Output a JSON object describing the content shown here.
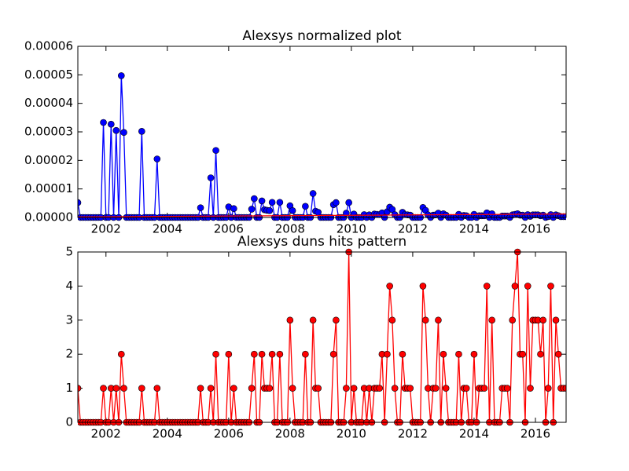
{
  "chart_data": [
    {
      "type": "line",
      "title": "Alexsys normalized plot",
      "x": [
        2001.083,
        2001.167,
        2001.25,
        2001.333,
        2001.417,
        2001.5,
        2001.583,
        2001.667,
        2001.75,
        2001.833,
        2001.917,
        2002,
        2002.083,
        2002.167,
        2002.25,
        2002.333,
        2002.417,
        2002.5,
        2002.583,
        2002.667,
        2002.75,
        2002.833,
        2002.917,
        2003,
        2003.083,
        2003.167,
        2003.25,
        2003.333,
        2003.417,
        2003.5,
        2003.583,
        2003.667,
        2003.75,
        2003.833,
        2003.917,
        2004,
        2004.083,
        2004.167,
        2004.25,
        2004.333,
        2004.417,
        2004.5,
        2004.583,
        2004.667,
        2004.75,
        2004.833,
        2004.917,
        2005,
        2005.083,
        2005.167,
        2005.25,
        2005.333,
        2005.417,
        2005.5,
        2005.583,
        2005.667,
        2005.75,
        2005.833,
        2005.917,
        2006,
        2006.083,
        2006.167,
        2006.25,
        2006.333,
        2006.417,
        2006.5,
        2006.583,
        2006.667,
        2006.75,
        2006.833,
        2006.917,
        2007,
        2007.083,
        2007.167,
        2007.25,
        2007.333,
        2007.417,
        2007.5,
        2007.583,
        2007.667,
        2007.75,
        2007.833,
        2007.917,
        2008,
        2008.083,
        2008.167,
        2008.25,
        2008.333,
        2008.417,
        2008.5,
        2008.583,
        2008.667,
        2008.75,
        2008.833,
        2008.917,
        2009,
        2009.083,
        2009.167,
        2009.25,
        2009.333,
        2009.417,
        2009.5,
        2009.583,
        2009.667,
        2009.75,
        2009.833,
        2009.917,
        2010,
        2010.083,
        2010.167,
        2010.25,
        2010.333,
        2010.417,
        2010.5,
        2010.583,
        2010.667,
        2010.75,
        2010.833,
        2010.917,
        2011,
        2011.083,
        2011.167,
        2011.25,
        2011.333,
        2011.417,
        2011.5,
        2011.583,
        2011.667,
        2011.75,
        2011.833,
        2011.917,
        2012,
        2012.083,
        2012.167,
        2012.25,
        2012.333,
        2012.417,
        2012.5,
        2012.583,
        2012.667,
        2012.75,
        2012.833,
        2012.917,
        2013,
        2013.083,
        2013.167,
        2013.25,
        2013.333,
        2013.417,
        2013.5,
        2013.583,
        2013.667,
        2013.75,
        2013.833,
        2013.917,
        2014,
        2014.083,
        2014.167,
        2014.25,
        2014.333,
        2014.417,
        2014.5,
        2014.583,
        2014.667,
        2014.75,
        2014.833,
        2014.917,
        2015,
        2015.083,
        2015.167,
        2015.25,
        2015.333,
        2015.417,
        2015.5,
        2015.583,
        2015.667,
        2015.75,
        2015.833,
        2015.917,
        2016,
        2016.083,
        2016.167,
        2016.25,
        2016.333,
        2016.417,
        2016.5,
        2016.583,
        2016.667,
        2016.75,
        2016.833,
        2016.917,
        2017
      ],
      "series": [
        {
          "color": "#0000ff",
          "marker": true,
          "values": [
            5.2e-06,
            0,
            0,
            0,
            0,
            0,
            0,
            0,
            0,
            0,
            3.33e-05,
            0,
            0,
            3.27e-05,
            0,
            3.05e-05,
            0,
            4.97e-05,
            2.98e-05,
            0,
            0,
            0,
            0,
            0,
            0,
            3.02e-05,
            0,
            0,
            0,
            0,
            0,
            2.05e-05,
            0,
            0,
            0,
            0,
            0,
            0,
            0,
            0,
            0,
            0,
            0,
            0,
            0,
            0,
            0,
            0,
            3.4e-06,
            0,
            0,
            0,
            1.39e-05,
            0,
            2.35e-05,
            0,
            0,
            0,
            0,
            3.7e-06,
            0,
            3.1e-06,
            0,
            0,
            0,
            0,
            0,
            0,
            2.9e-06,
            6.6e-06,
            0,
            0,
            5.8e-06,
            2.7e-06,
            2.5e-06,
            2.4e-06,
            5.3e-06,
            0,
            0,
            5.3e-06,
            0,
            0,
            0,
            4.1e-06,
            2.4e-06,
            0,
            0,
            0,
            0,
            3.9e-06,
            0,
            0,
            8.4e-06,
            2.2e-06,
            1.8e-06,
            0,
            0,
            0,
            0,
            0,
            4.5e-06,
            5.2e-06,
            0,
            0,
            0,
            1.5e-06,
            5.2e-06,
            0,
            1.2e-06,
            0,
            0,
            0,
            1e-06,
            0,
            9e-07,
            0,
            1.2e-06,
            1.1e-06,
            1e-06,
            1.6e-06,
            0,
            2e-06,
            3.6e-06,
            2.8e-06,
            1e-06,
            0,
            0,
            1.8e-06,
            1e-06,
            9e-07,
            8e-07,
            0,
            0,
            0,
            0,
            3.5e-06,
            2.5e-06,
            9e-07,
            0,
            8e-07,
            9e-07,
            1.5e-06,
            0,
            1.3e-06,
            8e-07,
            0,
            0,
            0,
            0,
            1.1e-06,
            0,
            7e-07,
            6e-07,
            0,
            0,
            1.1e-06,
            0,
            6e-07,
            6e-07,
            6e-07,
            1.6e-06,
            0,
            1.3e-06,
            0,
            0,
            0,
            5e-07,
            5e-07,
            5e-07,
            0,
            9e-07,
            1.1e-06,
            1.3e-06,
            8e-07,
            8e-07,
            0,
            1e-06,
            4e-07,
            9e-07,
            9e-07,
            9e-07,
            6e-07,
            8e-07,
            0,
            3e-07,
            1e-06,
            0,
            9e-07,
            6e-07,
            3e-07,
            3e-07,
            3e-07
          ]
        },
        {
          "color": "#ff0000",
          "marker": false,
          "x": [
            2001.083,
            2017
          ],
          "values": [
            2e-07,
            1.2e-06
          ]
        }
      ],
      "xlim": [
        2001.083,
        2017
      ],
      "xticks": [
        2002,
        2004,
        2006,
        2008,
        2010,
        2012,
        2014,
        2016
      ],
      "ylim": [
        0,
        6e-05
      ],
      "yticks": [
        {
          "value": 0,
          "label": "0.00000"
        },
        {
          "value": 1e-05,
          "label": "0.00001"
        },
        {
          "value": 2e-05,
          "label": "0.00002"
        },
        {
          "value": 3e-05,
          "label": "0.00003"
        },
        {
          "value": 4e-05,
          "label": "0.00004"
        },
        {
          "value": 5e-05,
          "label": "0.00005"
        },
        {
          "value": 6e-05,
          "label": "0.00006"
        }
      ]
    },
    {
      "type": "line",
      "title": "Alexsys duns hits pattern",
      "x": [
        2001.083,
        2001.167,
        2001.25,
        2001.333,
        2001.417,
        2001.5,
        2001.583,
        2001.667,
        2001.75,
        2001.833,
        2001.917,
        2002,
        2002.083,
        2002.167,
        2002.25,
        2002.333,
        2002.417,
        2002.5,
        2002.583,
        2002.667,
        2002.75,
        2002.833,
        2002.917,
        2003,
        2003.083,
        2003.167,
        2003.25,
        2003.333,
        2003.417,
        2003.5,
        2003.583,
        2003.667,
        2003.75,
        2003.833,
        2003.917,
        2004,
        2004.083,
        2004.167,
        2004.25,
        2004.333,
        2004.417,
        2004.5,
        2004.583,
        2004.667,
        2004.75,
        2004.833,
        2004.917,
        2005,
        2005.083,
        2005.167,
        2005.25,
        2005.333,
        2005.417,
        2005.5,
        2005.583,
        2005.667,
        2005.75,
        2005.833,
        2005.917,
        2006,
        2006.083,
        2006.167,
        2006.25,
        2006.333,
        2006.417,
        2006.5,
        2006.583,
        2006.667,
        2006.75,
        2006.833,
        2006.917,
        2007,
        2007.083,
        2007.167,
        2007.25,
        2007.333,
        2007.417,
        2007.5,
        2007.583,
        2007.667,
        2007.75,
        2007.833,
        2007.917,
        2008,
        2008.083,
        2008.167,
        2008.25,
        2008.333,
        2008.417,
        2008.5,
        2008.583,
        2008.667,
        2008.75,
        2008.833,
        2008.917,
        2009,
        2009.083,
        2009.167,
        2009.25,
        2009.333,
        2009.417,
        2009.5,
        2009.583,
        2009.667,
        2009.75,
        2009.833,
        2009.917,
        2010,
        2010.083,
        2010.167,
        2010.25,
        2010.333,
        2010.417,
        2010.5,
        2010.583,
        2010.667,
        2010.75,
        2010.833,
        2010.917,
        2011,
        2011.083,
        2011.167,
        2011.25,
        2011.333,
        2011.417,
        2011.5,
        2011.583,
        2011.667,
        2011.75,
        2011.833,
        2011.917,
        2012,
        2012.083,
        2012.167,
        2012.25,
        2012.333,
        2012.417,
        2012.5,
        2012.583,
        2012.667,
        2012.75,
        2012.833,
        2012.917,
        2013,
        2013.083,
        2013.167,
        2013.25,
        2013.333,
        2013.417,
        2013.5,
        2013.583,
        2013.667,
        2013.75,
        2013.833,
        2013.917,
        2014,
        2014.083,
        2014.167,
        2014.25,
        2014.333,
        2014.417,
        2014.5,
        2014.583,
        2014.667,
        2014.75,
        2014.833,
        2014.917,
        2015,
        2015.083,
        2015.167,
        2015.25,
        2015.333,
        2015.417,
        2015.5,
        2015.583,
        2015.667,
        2015.75,
        2015.833,
        2015.917,
        2016,
        2016.083,
        2016.167,
        2016.25,
        2016.333,
        2016.417,
        2016.5,
        2016.583,
        2016.667,
        2016.75,
        2016.833,
        2016.917,
        2017
      ],
      "series": [
        {
          "color": "#ff0000",
          "marker": true,
          "values": [
            1,
            0,
            0,
            0,
            0,
            0,
            0,
            0,
            0,
            0,
            1,
            0,
            0,
            1,
            0,
            1,
            0,
            2,
            1,
            0,
            0,
            0,
            0,
            0,
            0,
            1,
            0,
            0,
            0,
            0,
            0,
            1,
            0,
            0,
            0,
            0,
            0,
            0,
            0,
            0,
            0,
            0,
            0,
            0,
            0,
            0,
            0,
            0,
            1,
            0,
            0,
            0,
            1,
            0,
            2,
            0,
            0,
            0,
            0,
            2,
            0,
            1,
            0,
            0,
            0,
            0,
            0,
            0,
            1,
            2,
            0,
            0,
            2,
            1,
            1,
            1,
            2,
            0,
            0,
            2,
            0,
            0,
            0,
            3,
            1,
            0,
            0,
            0,
            0,
            2,
            0,
            0,
            3,
            1,
            1,
            0,
            0,
            0,
            0,
            0,
            2,
            3,
            0,
            0,
            0,
            1,
            5,
            0,
            1,
            0,
            0,
            0,
            1,
            0,
            1,
            0,
            1,
            1,
            1,
            2,
            0,
            2,
            4,
            3,
            1,
            0,
            0,
            2,
            1,
            1,
            1,
            0,
            0,
            0,
            0,
            4,
            3,
            1,
            0,
            1,
            1,
            3,
            0,
            2,
            1,
            0,
            0,
            0,
            0,
            2,
            0,
            1,
            1,
            0,
            0,
            2,
            0,
            1,
            1,
            1,
            4,
            0,
            3,
            0,
            0,
            0,
            1,
            1,
            1,
            0,
            3,
            4,
            5,
            2,
            2,
            0,
            4,
            1,
            3,
            3,
            3,
            2,
            3,
            0,
            1,
            4,
            0,
            3,
            2,
            1,
            1,
            1
          ]
        }
      ],
      "xlim": [
        2001.083,
        2017
      ],
      "xticks": [
        2002,
        2004,
        2006,
        2008,
        2010,
        2012,
        2014,
        2016
      ],
      "ylim": [
        0,
        5
      ],
      "yticks": [
        0,
        1,
        2,
        3,
        4,
        5
      ]
    }
  ]
}
